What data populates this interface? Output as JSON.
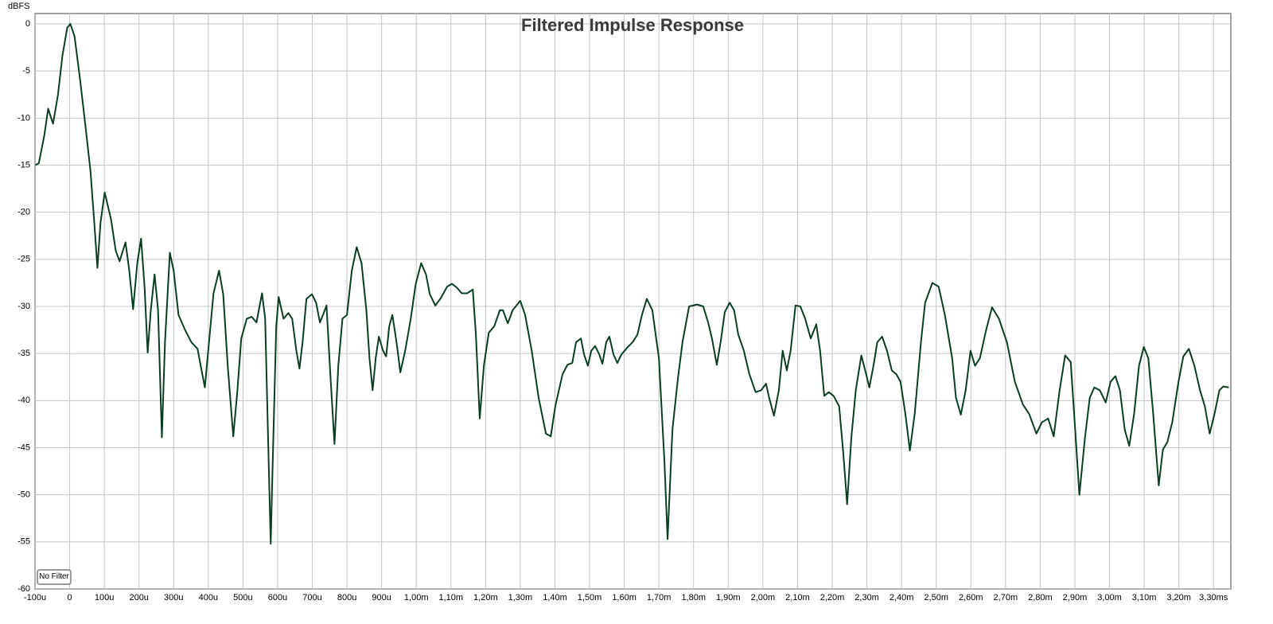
{
  "chart_data": {
    "type": "line",
    "title": "Filtered Impulse Response",
    "ylabel": "dBFS",
    "x": [
      -0.099,
      -0.089,
      -0.073,
      -0.062,
      -0.048,
      -0.034,
      -0.021,
      -0.007,
      0.002,
      0.014,
      0.03,
      0.046,
      0.06,
      0.071,
      0.08,
      0.089,
      0.101,
      0.119,
      0.133,
      0.144,
      0.161,
      0.172,
      0.183,
      0.195,
      0.206,
      0.216,
      0.225,
      0.234,
      0.245,
      0.255,
      0.266,
      0.275,
      0.289,
      0.3,
      0.314,
      0.333,
      0.351,
      0.369,
      0.378,
      0.39,
      0.404,
      0.415,
      0.431,
      0.443,
      0.456,
      0.472,
      0.484,
      0.495,
      0.511,
      0.525,
      0.539,
      0.555,
      0.564,
      0.573,
      0.58,
      0.587,
      0.596,
      0.603,
      0.617,
      0.631,
      0.642,
      0.654,
      0.663,
      0.672,
      0.683,
      0.699,
      0.711,
      0.722,
      0.732,
      0.741,
      0.752,
      0.764,
      0.775,
      0.787,
      0.8,
      0.814,
      0.828,
      0.842,
      0.856,
      0.865,
      0.874,
      0.883,
      0.892,
      0.904,
      0.913,
      0.922,
      0.931,
      0.943,
      0.954,
      0.968,
      0.984,
      0.998,
      1.014,
      1.028,
      1.039,
      1.055,
      1.071,
      1.089,
      1.103,
      1.117,
      1.131,
      1.147,
      1.163,
      1.172,
      1.183,
      1.195,
      1.209,
      1.225,
      1.241,
      1.25,
      1.264,
      1.278,
      1.3,
      1.314,
      1.333,
      1.353,
      1.374,
      1.388,
      1.401,
      1.422,
      1.436,
      1.45,
      1.461,
      1.475,
      1.484,
      1.495,
      1.505,
      1.516,
      1.528,
      1.537,
      1.548,
      1.557,
      1.569,
      1.58,
      1.592,
      1.608,
      1.624,
      1.638,
      1.651,
      1.665,
      1.681,
      1.7,
      1.716,
      1.725,
      1.739,
      1.755,
      1.768,
      1.787,
      1.81,
      1.828,
      1.842,
      1.853,
      1.867,
      1.878,
      1.89,
      1.904,
      1.917,
      1.929,
      1.945,
      1.961,
      1.979,
      1.995,
      2.009,
      2.018,
      2.032,
      2.046,
      2.057,
      2.069,
      2.08,
      2.094,
      2.108,
      2.122,
      2.138,
      2.154,
      2.165,
      2.177,
      2.19,
      2.204,
      2.22,
      2.232,
      2.243,
      2.255,
      2.268,
      2.284,
      2.298,
      2.307,
      2.319,
      2.33,
      2.344,
      2.358,
      2.372,
      2.385,
      2.397,
      2.411,
      2.424,
      2.438,
      2.456,
      2.468,
      2.489,
      2.507,
      2.525,
      2.546,
      2.557,
      2.571,
      2.585,
      2.599,
      2.612,
      2.626,
      2.644,
      2.661,
      2.681,
      2.704,
      2.727,
      2.75,
      2.768,
      2.789,
      2.805,
      2.823,
      2.839,
      2.856,
      2.872,
      2.888,
      2.901,
      2.913,
      2.929,
      2.943,
      2.956,
      2.972,
      2.989,
      3.003,
      3.017,
      3.03,
      3.044,
      3.057,
      3.071,
      3.085,
      3.099,
      3.112,
      3.126,
      3.142,
      3.154,
      3.167,
      3.181,
      3.199,
      3.213,
      3.229,
      3.245,
      3.261,
      3.275,
      3.289,
      3.303,
      3.317,
      3.328,
      3.344
    ],
    "series": [
      {
        "name": "Filtered Impulse Response",
        "color": "#0b3d22",
        "values": [
          -15.0,
          -14.8,
          -11.8,
          -9.0,
          -10.6,
          -7.6,
          -3.4,
          -0.4,
          0,
          -1.3,
          -5.9,
          -11.0,
          -15.6,
          -21.1,
          -25.9,
          -21.1,
          -17.9,
          -20.7,
          -24.1,
          -25.2,
          -23.2,
          -26.2,
          -30.3,
          -25.4,
          -22.8,
          -27.9,
          -34.9,
          -30.4,
          -26.6,
          -30.4,
          -43.9,
          -33.8,
          -24.3,
          -26.2,
          -30.9,
          -32.5,
          -33.8,
          -34.5,
          -36.3,
          -38.6,
          -33.0,
          -28.6,
          -26.2,
          -28.7,
          -36.3,
          -43.8,
          -38.9,
          -33.4,
          -31.3,
          -31.1,
          -31.7,
          -28.6,
          -31.3,
          -44.8,
          -55.2,
          -44.8,
          -32.1,
          -29.0,
          -31.3,
          -30.7,
          -31.3,
          -34.7,
          -36.6,
          -33.8,
          -29.2,
          -28.7,
          -29.6,
          -31.7,
          -30.8,
          -29.9,
          -37.2,
          -44.6,
          -36.3,
          -31.3,
          -30.9,
          -26.2,
          -23.7,
          -25.4,
          -30.4,
          -35.5,
          -38.9,
          -35.5,
          -33.2,
          -34.7,
          -35.3,
          -32.1,
          -30.9,
          -33.8,
          -37.0,
          -34.7,
          -31.3,
          -27.7,
          -25.4,
          -26.6,
          -28.7,
          -29.9,
          -29.1,
          -27.9,
          -27.6,
          -28.0,
          -28.6,
          -28.6,
          -28.2,
          -33.0,
          -41.9,
          -36.3,
          -32.8,
          -32.1,
          -30.4,
          -30.4,
          -31.8,
          -30.4,
          -29.4,
          -30.9,
          -34.7,
          -39.7,
          -43.5,
          -43.8,
          -40.6,
          -37.2,
          -36.2,
          -36.0,
          -33.8,
          -33.4,
          -35.1,
          -36.3,
          -34.7,
          -34.2,
          -35.1,
          -36.1,
          -33.8,
          -33.2,
          -35.1,
          -36.0,
          -35.1,
          -34.4,
          -33.8,
          -33.0,
          -30.9,
          -29.2,
          -30.4,
          -35.5,
          -46.5,
          -54.7,
          -43.1,
          -37.6,
          -33.8,
          -30.0,
          -29.8,
          -30.0,
          -31.7,
          -33.4,
          -36.2,
          -33.8,
          -30.6,
          -29.6,
          -30.4,
          -33.0,
          -34.7,
          -37.2,
          -39.1,
          -38.9,
          -38.2,
          -39.7,
          -41.6,
          -38.9,
          -34.7,
          -36.8,
          -34.7,
          -29.9,
          -30.0,
          -31.3,
          -33.4,
          -31.9,
          -34.7,
          -39.5,
          -39.1,
          -39.5,
          -40.6,
          -45.6,
          -51.0,
          -44.0,
          -38.9,
          -35.2,
          -37.2,
          -38.6,
          -36.3,
          -33.8,
          -33.2,
          -34.7,
          -36.8,
          -37.2,
          -38.0,
          -41.4,
          -45.3,
          -41.4,
          -33.8,
          -29.6,
          -27.5,
          -27.9,
          -30.9,
          -35.5,
          -39.7,
          -41.5,
          -38.9,
          -34.7,
          -36.3,
          -35.5,
          -32.5,
          -30.1,
          -31.3,
          -33.8,
          -38.0,
          -40.4,
          -41.4,
          -43.5,
          -42.3,
          -41.9,
          -43.8,
          -38.9,
          -35.2,
          -35.9,
          -43.1,
          -50.0,
          -44.0,
          -39.7,
          -38.6,
          -38.9,
          -40.2,
          -38.0,
          -37.4,
          -38.9,
          -43.1,
          -44.8,
          -41.4,
          -36.3,
          -34.3,
          -35.5,
          -41.4,
          -49.0,
          -45.2,
          -44.4,
          -42.3,
          -38.0,
          -35.3,
          -34.5,
          -36.3,
          -38.9,
          -40.6,
          -43.5,
          -41.4,
          -38.9,
          -38.5,
          -38.6
        ]
      }
    ],
    "xlim": [
      -0.1,
      3.35
    ],
    "ylim": [
      -60,
      1.1
    ],
    "xticks": [
      {
        "value": -0.1,
        "label": "-100u"
      },
      0,
      {
        "value": 0.1,
        "label": "100u"
      },
      {
        "value": 0.2,
        "label": "200u"
      },
      {
        "value": 0.3,
        "label": "300u"
      },
      {
        "value": 0.4,
        "label": "400u"
      },
      {
        "value": 0.5,
        "label": "500u"
      },
      {
        "value": 0.6,
        "label": "600u"
      },
      {
        "value": 0.7,
        "label": "700u"
      },
      {
        "value": 0.8,
        "label": "800u"
      },
      {
        "value": 0.9,
        "label": "900u"
      },
      {
        "value": 1.0,
        "label": "1,00m"
      },
      {
        "value": 1.1,
        "label": "1,10m"
      },
      {
        "value": 1.2,
        "label": "1,20m"
      },
      {
        "value": 1.3,
        "label": "1,30m"
      },
      {
        "value": 1.4,
        "label": "1,40m"
      },
      {
        "value": 1.5,
        "label": "1,50m"
      },
      {
        "value": 1.6,
        "label": "1,60m"
      },
      {
        "value": 1.7,
        "label": "1,70m"
      },
      {
        "value": 1.8,
        "label": "1,80m"
      },
      {
        "value": 1.9,
        "label": "1,90m"
      },
      {
        "value": 2.0,
        "label": "2,00m"
      },
      {
        "value": 2.1,
        "label": "2,10m"
      },
      {
        "value": 2.2,
        "label": "2,20m"
      },
      {
        "value": 2.3,
        "label": "2,30m"
      },
      {
        "value": 2.4,
        "label": "2,40m"
      },
      {
        "value": 2.5,
        "label": "2,50m"
      },
      {
        "value": 2.6,
        "label": "2,60m"
      },
      {
        "value": 2.7,
        "label": "2,70m"
      },
      {
        "value": 2.8,
        "label": "2,80m"
      },
      {
        "value": 2.9,
        "label": "2,90m"
      },
      {
        "value": 3.0,
        "label": "3,00m"
      },
      {
        "value": 3.1,
        "label": "3,10m"
      },
      {
        "value": 3.2,
        "label": "3,20m"
      },
      {
        "value": 3.3,
        "label": "3,30ms"
      }
    ],
    "yticks": [
      0,
      -5,
      -10,
      -15,
      -20,
      -25,
      -30,
      -35,
      -40,
      -45,
      -50,
      -55,
      -60
    ],
    "grid": true
  },
  "controls": {
    "filter_button": "No Filter"
  }
}
